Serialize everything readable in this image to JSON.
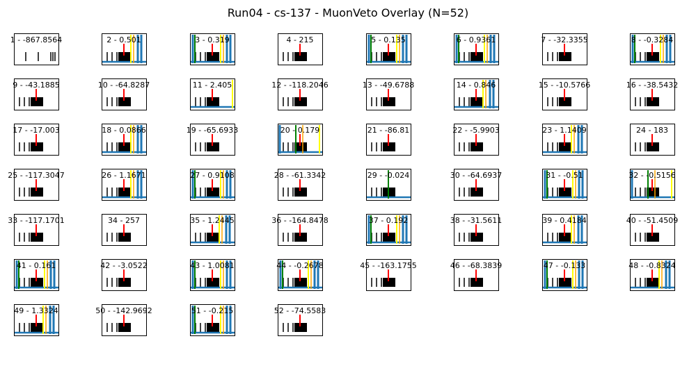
{
  "figure": {
    "title": "Run04 - cs-137 - MuonVeto Overlay (N=52)"
  },
  "colors": {
    "blue": "#1f77b4",
    "red": "#ff0000",
    "green": "#008000",
    "yellow": "#ffff00",
    "orange": "#ffa500",
    "black": "#000000"
  },
  "chart_data": {
    "type": "grid of small multiples",
    "title": "Run04 - cs-137 - MuonVeto Overlay (N=52)",
    "grid": {
      "columns": 8,
      "rows": 7
    },
    "panels": [
      {
        "index": 1,
        "value": "-867.8564",
        "overlay": "none"
      },
      {
        "index": 2,
        "value": "0.501",
        "overlay": "right"
      },
      {
        "index": 3,
        "value": "0.319",
        "overlay": "full"
      },
      {
        "index": 4,
        "value": "215",
        "overlay": "none"
      },
      {
        "index": 5,
        "value": "0.135",
        "overlay": "full"
      },
      {
        "index": 6,
        "value": "0.9361",
        "overlay": "full"
      },
      {
        "index": 7,
        "value": "-32.3355",
        "overlay": "none"
      },
      {
        "index": 8,
        "value": "-0.3284",
        "overlay": "full"
      },
      {
        "index": 9,
        "value": "-43.1885",
        "overlay": "none"
      },
      {
        "index": 10,
        "value": "-64.8287",
        "overlay": "none"
      },
      {
        "index": 11,
        "value": "2.405",
        "overlay": "edge"
      },
      {
        "index": 12,
        "value": "-118.2046",
        "overlay": "none"
      },
      {
        "index": 13,
        "value": "-49.6788",
        "overlay": "none"
      },
      {
        "index": 14,
        "value": "0.846",
        "overlay": "right"
      },
      {
        "index": 15,
        "value": "-10.5766",
        "overlay": "none"
      },
      {
        "index": 16,
        "value": "-38.5432",
        "overlay": "none"
      },
      {
        "index": 17,
        "value": "-17.003",
        "overlay": "none"
      },
      {
        "index": 18,
        "value": "0.0866",
        "overlay": "right"
      },
      {
        "index": 19,
        "value": "-65.6933",
        "overlay": "none"
      },
      {
        "index": 20,
        "value": "0.179",
        "overlay": "left"
      },
      {
        "index": 21,
        "value": "-86.81",
        "overlay": "none"
      },
      {
        "index": 22,
        "value": "-5.9903",
        "overlay": "none"
      },
      {
        "index": 23,
        "value": "1.1409",
        "overlay": "right"
      },
      {
        "index": 24,
        "value": "183",
        "overlay": "none"
      },
      {
        "index": 25,
        "value": "-117.3047",
        "overlay": "none"
      },
      {
        "index": 26,
        "value": "1.1671",
        "overlay": "right"
      },
      {
        "index": 27,
        "value": "0.9108",
        "overlay": "full"
      },
      {
        "index": 28,
        "value": "-61.3342",
        "overlay": "none"
      },
      {
        "index": 29,
        "value": "-0.024",
        "overlay": "baseline"
      },
      {
        "index": 30,
        "value": "-64.6937",
        "overlay": "none"
      },
      {
        "index": 31,
        "value": "-0.51",
        "overlay": "full"
      },
      {
        "index": 32,
        "value": "-0.5156",
        "overlay": "left"
      },
      {
        "index": 33,
        "value": "-117.1701",
        "overlay": "none"
      },
      {
        "index": 34,
        "value": "257",
        "overlay": "none"
      },
      {
        "index": 35,
        "value": "1.2445",
        "overlay": "right"
      },
      {
        "index": 36,
        "value": "-164.8478",
        "overlay": "none"
      },
      {
        "index": 37,
        "value": "0.192",
        "overlay": "full"
      },
      {
        "index": 38,
        "value": "-31.5611",
        "overlay": "none"
      },
      {
        "index": 39,
        "value": "0.4184",
        "overlay": "right"
      },
      {
        "index": 40,
        "value": "-51.4509",
        "overlay": "none"
      },
      {
        "index": 41,
        "value": "0.161",
        "overlay": "full"
      },
      {
        "index": 42,
        "value": "-3.0522",
        "overlay": "none"
      },
      {
        "index": 43,
        "value": "1.0081",
        "overlay": "full"
      },
      {
        "index": 44,
        "value": "-0.2678",
        "overlay": "full"
      },
      {
        "index": 45,
        "value": "-163.1755",
        "overlay": "none"
      },
      {
        "index": 46,
        "value": "-68.3839",
        "overlay": "none"
      },
      {
        "index": 47,
        "value": "-0.133",
        "overlay": "full"
      },
      {
        "index": 48,
        "value": "-0.8324",
        "overlay": "right"
      },
      {
        "index": 49,
        "value": "1.3324",
        "overlay": "right"
      },
      {
        "index": 50,
        "value": "-142.9692",
        "overlay": "none"
      },
      {
        "index": 51,
        "value": "-0.215",
        "overlay": "full"
      },
      {
        "index": 52,
        "value": "-74.5583",
        "overlay": "none"
      }
    ]
  }
}
